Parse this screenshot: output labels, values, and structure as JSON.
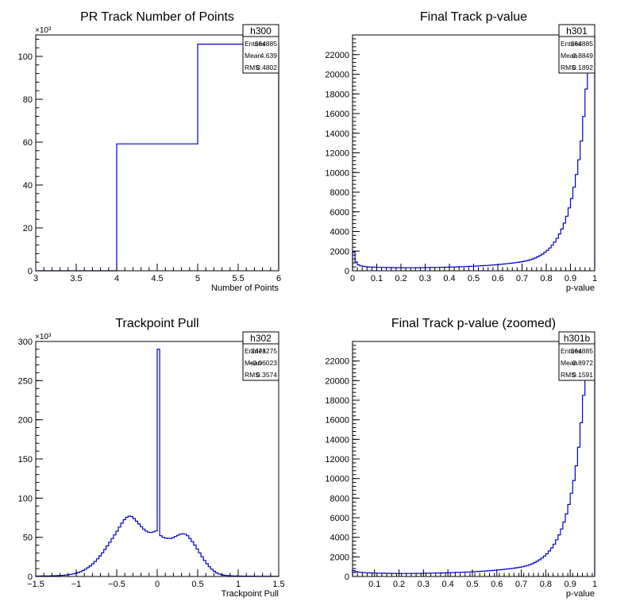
{
  "chart_data": [
    {
      "type": "histogram",
      "title": "PR Track Number of Points",
      "xlabel": "Number of Points",
      "ylabel": "",
      "xlim": [
        3,
        6
      ],
      "ylim": [
        0,
        110000
      ],
      "y_multiplier": "×10³",
      "xticks": [
        3,
        3.5,
        4,
        4.5,
        5,
        5.5,
        6
      ],
      "xtick_labels": [
        "3",
        "3.5",
        "4",
        "4.5",
        "5",
        "5.5",
        "6"
      ],
      "yticks": [
        0,
        20000,
        40000,
        60000,
        80000,
        100000
      ],
      "ytick_labels": [
        "0",
        "20",
        "40",
        "60",
        "80",
        "100"
      ],
      "bin_edges": [
        3,
        4,
        5,
        6
      ],
      "counts": [
        0,
        59200,
        105700
      ],
      "stats": {
        "name": "h300",
        "rows": [
          {
            "label": "Entries",
            "value": "164885"
          },
          {
            "label": "Mean",
            "value": "4.639"
          },
          {
            "label": "RMS",
            "value": "0.4802"
          }
        ]
      },
      "line_color": "#0000cc"
    },
    {
      "type": "histogram",
      "title": "Final Track p-value",
      "xlabel": "p-value",
      "ylabel": "",
      "xlim": [
        0,
        1
      ],
      "ylim": [
        0,
        24000
      ],
      "y_multiplier": "",
      "xticks": [
        0,
        0.1,
        0.2,
        0.3,
        0.4,
        0.5,
        0.6,
        0.7,
        0.8,
        0.9,
        1
      ],
      "xtick_labels": [
        "0",
        "0.1",
        "0.2",
        "0.3",
        "0.4",
        "0.5",
        "0.6",
        "0.7",
        "0.8",
        "0.9",
        "1"
      ],
      "yticks": [
        0,
        2000,
        4000,
        6000,
        8000,
        10000,
        12000,
        14000,
        16000,
        18000,
        20000,
        22000
      ],
      "ytick_labels": [
        "0",
        "2000",
        "4000",
        "6000",
        "8000",
        "10000",
        "12000",
        "14000",
        "16000",
        "18000",
        "20000",
        "22000"
      ],
      "bin_edges": [
        0,
        0.01,
        0.02,
        0.03,
        0.04,
        0.05,
        0.06,
        0.07,
        0.08,
        0.09,
        0.1,
        0.11,
        0.12,
        0.13,
        0.14,
        0.15,
        0.16,
        0.17,
        0.18,
        0.19,
        0.2,
        0.21,
        0.22,
        0.23,
        0.24,
        0.25,
        0.26,
        0.27,
        0.28,
        0.29,
        0.3,
        0.31,
        0.32,
        0.33,
        0.34,
        0.35,
        0.36,
        0.37,
        0.38,
        0.39,
        0.4,
        0.41,
        0.42,
        0.43,
        0.44,
        0.45,
        0.46,
        0.47,
        0.48,
        0.49,
        0.5,
        0.51,
        0.52,
        0.53,
        0.54,
        0.55,
        0.56,
        0.57,
        0.58,
        0.59,
        0.6,
        0.61,
        0.62,
        0.63,
        0.64,
        0.65,
        0.66,
        0.67,
        0.68,
        0.69,
        0.7,
        0.71,
        0.72,
        0.73,
        0.74,
        0.75,
        0.76,
        0.77,
        0.78,
        0.79,
        0.8,
        0.81,
        0.82,
        0.83,
        0.84,
        0.85,
        0.86,
        0.87,
        0.88,
        0.89,
        0.9,
        0.91,
        0.92,
        0.93,
        0.94,
        0.95,
        0.96,
        0.97,
        0.98,
        0.99,
        1
      ],
      "counts": [
        1900,
        900,
        600,
        500,
        450,
        420,
        400,
        380,
        370,
        360,
        350,
        345,
        340,
        335,
        330,
        325,
        320,
        318,
        316,
        314,
        312,
        310,
        310,
        310,
        310,
        310,
        312,
        314,
        316,
        318,
        320,
        325,
        330,
        335,
        340,
        345,
        350,
        355,
        360,
        365,
        370,
        380,
        390,
        400,
        410,
        420,
        430,
        440,
        450,
        460,
        470,
        485,
        500,
        515,
        530,
        545,
        560,
        580,
        600,
        620,
        640,
        665,
        690,
        715,
        740,
        770,
        800,
        830,
        860,
        900,
        940,
        990,
        1050,
        1120,
        1200,
        1300,
        1420,
        1550,
        1700,
        1880,
        2080,
        2320,
        2600,
        2920,
        3300,
        3750,
        4250,
        4850,
        5550,
        6400,
        7350,
        8500,
        9800,
        11300,
        13200,
        15700,
        18500,
        21200,
        24000,
        24000
      ],
      "stats": {
        "name": "h301",
        "rows": [
          {
            "label": "Entries",
            "value": "164885"
          },
          {
            "label": "Mean",
            "value": "0.8849"
          },
          {
            "label": "RMS",
            "value": "0.1892"
          }
        ]
      },
      "line_color": "#0000cc"
    },
    {
      "type": "histogram",
      "title": "Trackpoint Pull",
      "xlabel": "Trackpoint Pull",
      "ylabel": "",
      "xlim": [
        -1.5,
        1.5
      ],
      "ylim": [
        0,
        300000
      ],
      "y_multiplier": "×10³",
      "xticks": [
        -1.5,
        -1,
        -0.5,
        0,
        0.5,
        1,
        1.5
      ],
      "xtick_labels": [
        "−1.5",
        "−1",
        "−0.5",
        "0",
        "0.5",
        "1",
        "1.5"
      ],
      "yticks": [
        0,
        50000,
        100000,
        150000,
        200000,
        250000,
        300000
      ],
      "ytick_labels": [
        "0",
        "50",
        "100",
        "150",
        "200",
        "250",
        "300"
      ],
      "bin_edges": [
        -1.5,
        -1.47,
        -1.44,
        -1.41,
        -1.38,
        -1.35,
        -1.32,
        -1.29,
        -1.26,
        -1.23,
        -1.2,
        -1.17,
        -1.14,
        -1.11,
        -1.08,
        -1.05,
        -1.02,
        -0.99,
        -0.96,
        -0.93,
        -0.9,
        -0.87,
        -0.84,
        -0.81,
        -0.78,
        -0.75,
        -0.72,
        -0.69,
        -0.66,
        -0.63,
        -0.6,
        -0.57,
        -0.54,
        -0.51,
        -0.48,
        -0.45,
        -0.42,
        -0.39,
        -0.36,
        -0.33,
        -0.3,
        -0.27,
        -0.24,
        -0.21,
        -0.18,
        -0.15,
        -0.12,
        -0.09,
        -0.06,
        -0.03,
        0,
        0.03,
        0.06,
        0.09,
        0.12,
        0.15,
        0.18,
        0.21,
        0.24,
        0.27,
        0.3,
        0.33,
        0.36,
        0.39,
        0.42,
        0.45,
        0.48,
        0.51,
        0.54,
        0.57,
        0.6,
        0.63,
        0.66,
        0.69,
        0.72,
        0.75,
        0.78,
        0.81,
        0.84,
        0.87,
        0.9,
        0.93,
        0.96,
        0.99,
        1.02,
        1.05,
        1.08,
        1.11,
        1.14,
        1.17,
        1.2,
        1.23,
        1.26,
        1.29,
        1.32,
        1.35,
        1.38,
        1.41,
        1.44,
        1.47,
        1.5
      ],
      "counts": [
        500,
        550,
        600,
        650,
        700,
        750,
        800,
        900,
        1000,
        1100,
        1300,
        1500,
        1800,
        2200,
        2700,
        3300,
        4000,
        5000,
        6200,
        7600,
        9300,
        11300,
        13600,
        16200,
        19200,
        22500,
        26200,
        30200,
        34500,
        39000,
        43600,
        48300,
        53000,
        57800,
        63000,
        68000,
        72500,
        75500,
        77000,
        76500,
        74000,
        70500,
        67000,
        63500,
        60500,
        58000,
        56500,
        56000,
        57000,
        58000,
        290000,
        52000,
        50000,
        49000,
        48500,
        48600,
        49500,
        51000,
        52500,
        54000,
        54500,
        54000,
        52000,
        48500,
        44500,
        40000,
        35200,
        30200,
        25200,
        20500,
        16300,
        12500,
        9300,
        6700,
        4700,
        3200,
        2200,
        1600,
        1200,
        1000,
        800,
        700,
        600,
        550,
        500,
        450,
        420,
        400,
        380,
        360,
        340,
        320,
        310,
        300,
        290,
        280,
        270,
        260,
        250,
        240
      ],
      "stats": {
        "name": "h302",
        "rows": [
          {
            "label": "Entries",
            "value": "2473275"
          },
          {
            "label": "Mean",
            "value": "−0.06023"
          },
          {
            "label": "RMS",
            "value": "0.3574"
          }
        ]
      },
      "line_color": "#0000cc"
    },
    {
      "type": "histogram",
      "title": "Final Track p-value (zoomed)",
      "xlabel": "p-value",
      "ylabel": "",
      "xlim": [
        0.01,
        1
      ],
      "ylim": [
        0,
        24000
      ],
      "y_multiplier": "",
      "xticks": [
        0.1,
        0.2,
        0.3,
        0.4,
        0.5,
        0.6,
        0.7,
        0.8,
        0.9,
        1
      ],
      "xtick_labels": [
        "0.1",
        "0.2",
        "0.3",
        "0.4",
        "0.5",
        "0.6",
        "0.7",
        "0.8",
        "0.9",
        "1"
      ],
      "yticks": [
        0,
        2000,
        4000,
        6000,
        8000,
        10000,
        12000,
        14000,
        16000,
        18000,
        20000,
        22000
      ],
      "ytick_labels": [
        "0",
        "2000",
        "4000",
        "6000",
        "8000",
        "10000",
        "12000",
        "14000",
        "16000",
        "18000",
        "20000",
        "22000"
      ],
      "bin_edges": [
        0.01,
        0.02,
        0.03,
        0.04,
        0.05,
        0.06,
        0.07,
        0.08,
        0.09,
        0.1,
        0.11,
        0.12,
        0.13,
        0.14,
        0.15,
        0.16,
        0.17,
        0.18,
        0.19,
        0.2,
        0.21,
        0.22,
        0.23,
        0.24,
        0.25,
        0.26,
        0.27,
        0.28,
        0.29,
        0.3,
        0.31,
        0.32,
        0.33,
        0.34,
        0.35,
        0.36,
        0.37,
        0.38,
        0.39,
        0.4,
        0.41,
        0.42,
        0.43,
        0.44,
        0.45,
        0.46,
        0.47,
        0.48,
        0.49,
        0.5,
        0.51,
        0.52,
        0.53,
        0.54,
        0.55,
        0.56,
        0.57,
        0.58,
        0.59,
        0.6,
        0.61,
        0.62,
        0.63,
        0.64,
        0.65,
        0.66,
        0.67,
        0.68,
        0.69,
        0.7,
        0.71,
        0.72,
        0.73,
        0.74,
        0.75,
        0.76,
        0.77,
        0.78,
        0.79,
        0.8,
        0.81,
        0.82,
        0.83,
        0.84,
        0.85,
        0.86,
        0.87,
        0.88,
        0.89,
        0.9,
        0.91,
        0.92,
        0.93,
        0.94,
        0.95,
        0.96,
        0.97,
        0.98,
        0.99,
        1
      ],
      "counts": [
        600,
        500,
        450,
        420,
        400,
        380,
        370,
        360,
        350,
        345,
        340,
        335,
        330,
        325,
        320,
        318,
        316,
        314,
        312,
        310,
        310,
        310,
        310,
        310,
        312,
        314,
        316,
        318,
        320,
        325,
        330,
        335,
        340,
        345,
        350,
        355,
        360,
        365,
        370,
        380,
        390,
        400,
        410,
        420,
        430,
        440,
        450,
        460,
        470,
        485,
        500,
        515,
        530,
        545,
        560,
        580,
        600,
        620,
        640,
        665,
        690,
        715,
        740,
        770,
        800,
        830,
        860,
        900,
        940,
        990,
        1050,
        1120,
        1200,
        1300,
        1420,
        1550,
        1700,
        1880,
        2080,
        2320,
        2600,
        2920,
        3300,
        3750,
        4250,
        4850,
        5550,
        6400,
        7350,
        8500,
        9800,
        11300,
        13200,
        15700,
        18500,
        21200,
        24000,
        24000,
        24000
      ],
      "stats": {
        "name": "h301b",
        "rows": [
          {
            "label": "Entries",
            "value": "164885"
          },
          {
            "label": "Mean",
            "value": "0.8972"
          },
          {
            "label": "RMS",
            "value": "0.1591"
          }
        ]
      },
      "line_color": "#0000cc"
    }
  ]
}
